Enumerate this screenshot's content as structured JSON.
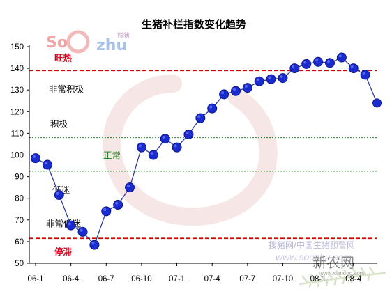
{
  "chart_data": {
    "type": "line",
    "title": "生猪补栏指数变化趋势",
    "xlabel": "",
    "ylabel": "",
    "ylim": [
      50,
      150
    ],
    "yticks": [
      50,
      60,
      70,
      80,
      90,
      100,
      110,
      120,
      130,
      140,
      150
    ],
    "x_tick_labels": [
      "06-1",
      "06-4",
      "06-7",
      "06-10",
      "07-1",
      "07-4",
      "07-7",
      "07-10",
      "08-1",
      "08-4"
    ],
    "months": [
      "06-1",
      "06-2",
      "06-3",
      "06-4",
      "06-5",
      "06-6",
      "06-7",
      "06-8",
      "06-9",
      "06-10",
      "06-11",
      "06-12",
      "07-1",
      "07-2",
      "07-3",
      "07-4",
      "07-5",
      "07-6",
      "07-7",
      "07-8",
      "07-9",
      "07-10",
      "07-11",
      "07-12",
      "08-1",
      "08-2",
      "08-3",
      "08-4",
      "08-5",
      "08-6"
    ],
    "values": [
      98.5,
      95.5,
      81.5,
      67.5,
      64.5,
      58.5,
      74,
      77,
      85,
      103.5,
      100,
      107.5,
      103.5,
      109.5,
      117,
      121.5,
      128,
      129.5,
      131,
      134,
      135,
      135.5,
      140,
      142,
      143,
      142.5,
      145,
      140,
      137,
      124
    ],
    "no_marker_points": [
      29
    ],
    "series_color": "#1b2ccf",
    "line_color": "#2e3b9e",
    "thresholds": [
      {
        "value": 139,
        "color": "#d40000",
        "style": "dashed"
      },
      {
        "value": 108,
        "color": "#1f8a1f",
        "style": "dotted"
      },
      {
        "value": 92.5,
        "color": "#1f8a1f",
        "style": "dotted"
      },
      {
        "value": 61.5,
        "color": "#d40000",
        "style": "dashed"
      }
    ],
    "zone_labels": [
      {
        "text": "旺热",
        "y": 145,
        "style": "red"
      },
      {
        "text": "非常积极",
        "y": 130.5,
        "style": "black"
      },
      {
        "text": "积极",
        "y": 114.5,
        "style": "black"
      },
      {
        "text": "正常",
        "y": 100,
        "style": "green"
      },
      {
        "text": "低迷",
        "y": 84,
        "style": "black"
      },
      {
        "text": "非常低迷",
        "y": 68.5,
        "style": "black"
      },
      {
        "text": "停滞",
        "y": 55.5,
        "style": "red"
      }
    ],
    "grid": false,
    "legend": "none"
  },
  "watermarks": {
    "logo_so": "So",
    "logo_zhu": "zhu",
    "logo_tag": "搜猪",
    "site_text": "搜猪网/中国生猪预警网",
    "site_url": "www.soozhu.com",
    "brand": "新农网",
    "brand_url": "www.xinnong.com"
  }
}
